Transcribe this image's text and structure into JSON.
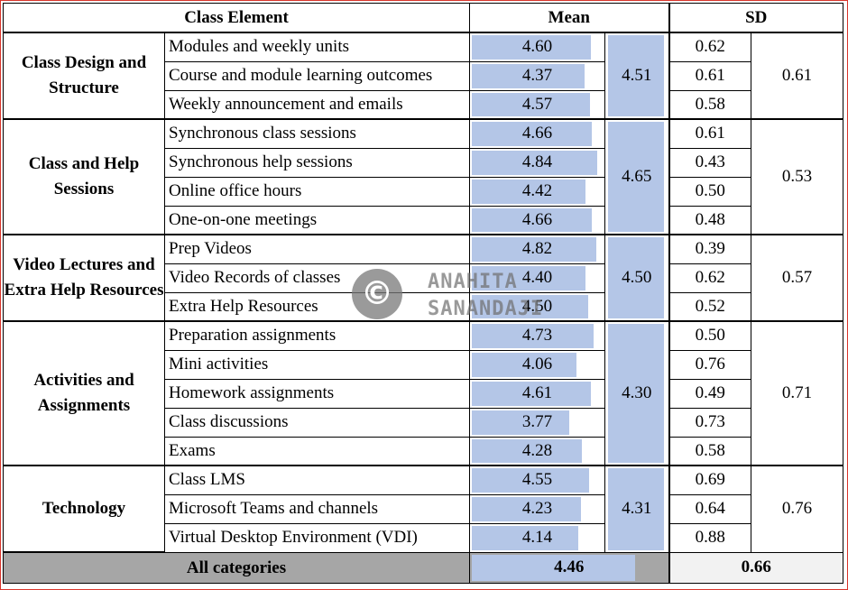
{
  "headers": {
    "element": "Class Element",
    "mean": "Mean",
    "sd": "SD"
  },
  "groups": [
    {
      "category": "Class Design and Structure",
      "mean": "4.51",
      "sd": "0.61",
      "items": [
        {
          "label": "Modules and weekly units",
          "mean": "4.60",
          "mean_value": 4.6,
          "sd": "0.62"
        },
        {
          "label": "Course and module learning outcomes",
          "mean": "4.37",
          "mean_value": 4.37,
          "sd": "0.61"
        },
        {
          "label": "Weekly announcement and emails",
          "mean": "4.57",
          "mean_value": 4.57,
          "sd": "0.58"
        }
      ]
    },
    {
      "category": "Class and Help Sessions",
      "mean": "4.65",
      "sd": "0.53",
      "items": [
        {
          "label": "Synchronous class sessions",
          "mean": "4.66",
          "mean_value": 4.66,
          "sd": "0.61"
        },
        {
          "label": "Synchronous help sessions",
          "mean": "4.84",
          "mean_value": 4.84,
          "sd": "0.43"
        },
        {
          "label": "Online office hours",
          "mean": "4.42",
          "mean_value": 4.42,
          "sd": "0.50"
        },
        {
          "label": "One-on-one meetings",
          "mean": "4.66",
          "mean_value": 4.66,
          "sd": "0.48"
        }
      ]
    },
    {
      "category": "Video Lectures and Extra Help Resources",
      "mean": "4.50",
      "sd": "0.57",
      "items": [
        {
          "label": "Prep Videos",
          "mean": "4.82",
          "mean_value": 4.82,
          "sd": "0.39"
        },
        {
          "label": "Video Records of classes",
          "mean": "4.40",
          "mean_value": 4.4,
          "sd": "0.62"
        },
        {
          "label": "Extra Help Resources",
          "mean": "4.50",
          "mean_value": 4.5,
          "sd": "0.52"
        }
      ]
    },
    {
      "category": "Activities and Assignments",
      "mean": "4.30",
      "sd": "0.71",
      "items": [
        {
          "label": "Preparation assignments",
          "mean": "4.73",
          "mean_value": 4.73,
          "sd": "0.50"
        },
        {
          "label": "Mini activities",
          "mean": "4.06",
          "mean_value": 4.06,
          "sd": "0.76"
        },
        {
          "label": "Homework assignments",
          "mean": "4.61",
          "mean_value": 4.61,
          "sd": "0.49"
        },
        {
          "label": "Class discussions",
          "mean": "3.77",
          "mean_value": 3.77,
          "sd": "0.73"
        },
        {
          "label": "Exams",
          "mean": "4.28",
          "mean_value": 4.28,
          "sd": "0.58"
        }
      ]
    },
    {
      "category": "Technology",
      "mean": "4.31",
      "sd": "0.76",
      "items": [
        {
          "label": "Class LMS",
          "mean": "4.55",
          "mean_value": 4.55,
          "sd": "0.69"
        },
        {
          "label": "Microsoft Teams and channels",
          "mean": "4.23",
          "mean_value": 4.23,
          "sd": "0.64"
        },
        {
          "label": "Virtual Desktop Environment (VDI)",
          "mean": "4.14",
          "mean_value": 4.14,
          "sd": "0.88"
        }
      ]
    }
  ],
  "footer": {
    "label": "All categories",
    "mean": "4.46",
    "mean_value": 4.46,
    "sd": "0.66"
  },
  "bar_scale_max": 5,
  "watermark": {
    "line1": "ANAHITA",
    "line2": "SANANDAJI",
    "icon": "copyright-icon"
  },
  "colors": {
    "bar": "#b4c6e7",
    "footer_bg": "#a6a6a6",
    "frame": "#d9342b"
  }
}
